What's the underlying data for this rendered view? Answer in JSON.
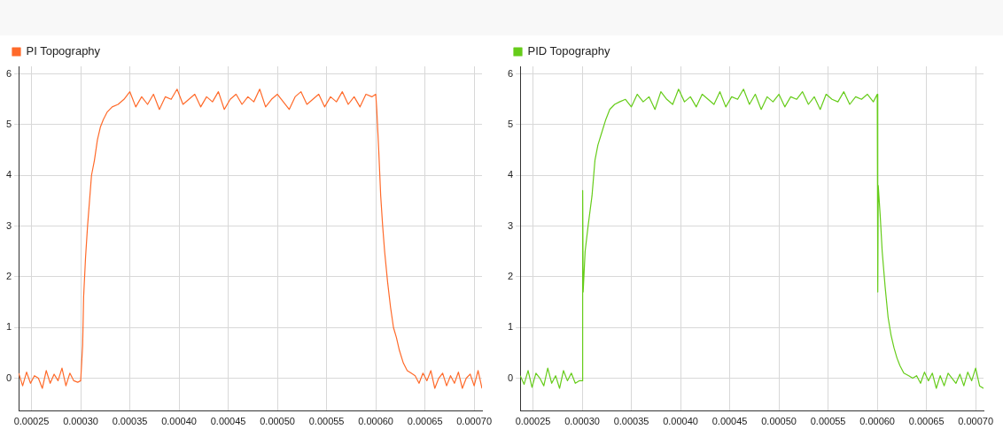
{
  "chart_data": [
    {
      "type": "line",
      "xlim": [
        0.000237,
        0.000708
      ],
      "xticks": [
        0.00025,
        {
          "value": 0.0003,
          "label": "0.00030"
        },
        0.00035,
        {
          "value": 0.0004,
          "label": "0.00040"
        },
        0.00045,
        {
          "value": 0.0005,
          "label": "0.00050"
        },
        0.00055,
        {
          "value": 0.0006,
          "label": "0.00060"
        },
        0.00065,
        {
          "value": 0.0007,
          "label": "0.00070"
        }
      ],
      "ylim": [
        -0.65,
        6.15
      ],
      "yticks": [
        0,
        1,
        2,
        3,
        4,
        5,
        6
      ],
      "grid": true,
      "legend": "top left",
      "marker": "none",
      "series": [
        {
          "name": "PI Topography",
          "color": "#ff6a2a",
          "x": [
            0.000237,
            0.000241,
            0.000245,
            0.000249,
            0.000253,
            0.000257,
            0.000261,
            0.000265,
            0.000269,
            0.000273,
            0.000277,
            0.000281,
            0.000285,
            0.000289,
            0.000293,
            0.000297,
            0.0003,
            0.000302,
            0.000303,
            0.000305,
            0.000307,
            0.000309,
            0.000311,
            0.000314,
            0.000317,
            0.00032,
            0.000323,
            0.000327,
            0.000332,
            0.000338,
            0.000344,
            0.00035,
            0.000356,
            0.000362,
            0.000368,
            0.000374,
            0.00038,
            0.000386,
            0.000392,
            0.000398,
            0.000404,
            0.00041,
            0.000416,
            0.000422,
            0.000428,
            0.000434,
            0.00044,
            0.000446,
            0.000452,
            0.000458,
            0.000464,
            0.00047,
            0.000476,
            0.000482,
            0.000488,
            0.000494,
            0.0005,
            0.000506,
            0.000512,
            0.000518,
            0.000524,
            0.00053,
            0.000536,
            0.000542,
            0.000548,
            0.000554,
            0.00056,
            0.000566,
            0.000572,
            0.000578,
            0.000584,
            0.00059,
            0.000596,
            0.0006,
            0.000601,
            0.000603,
            0.000605,
            0.000607,
            0.000609,
            0.000612,
            0.000615,
            0.000618,
            0.000621,
            0.000624,
            0.000628,
            0.000632,
            0.000636,
            0.00064,
            0.000644,
            0.000648,
            0.000652,
            0.000656,
            0.00066,
            0.000664,
            0.000668,
            0.000672,
            0.000676,
            0.00068,
            0.000684,
            0.000688,
            0.000692,
            0.000696,
            0.0007,
            0.000704,
            0.000708
          ],
          "values": [
            0.1,
            -0.15,
            0.12,
            -0.1,
            0.05,
            0.0,
            -0.2,
            0.15,
            -0.1,
            0.08,
            -0.05,
            0.2,
            -0.15,
            0.1,
            -0.05,
            -0.08,
            -0.05,
            0.65,
            1.6,
            2.4,
            3.0,
            3.5,
            4.0,
            4.3,
            4.7,
            4.95,
            5.1,
            5.25,
            5.35,
            5.4,
            5.5,
            5.65,
            5.35,
            5.55,
            5.4,
            5.6,
            5.3,
            5.55,
            5.5,
            5.7,
            5.4,
            5.5,
            5.6,
            5.35,
            5.55,
            5.45,
            5.65,
            5.3,
            5.5,
            5.6,
            5.4,
            5.55,
            5.45,
            5.7,
            5.35,
            5.5,
            5.6,
            5.45,
            5.3,
            5.55,
            5.65,
            5.4,
            5.5,
            5.6,
            5.35,
            5.55,
            5.45,
            5.65,
            5.4,
            5.55,
            5.35,
            5.6,
            5.55,
            5.6,
            5.3,
            4.5,
            3.6,
            3.0,
            2.5,
            1.9,
            1.4,
            1.0,
            0.8,
            0.55,
            0.3,
            0.15,
            0.1,
            0.05,
            -0.1,
            0.1,
            -0.05,
            0.15,
            -0.2,
            0.0,
            0.1,
            -0.15,
            0.05,
            -0.1,
            0.12,
            -0.2,
            0.0,
            0.08,
            -0.15,
            0.15,
            -0.2
          ]
        }
      ]
    },
    {
      "type": "line",
      "xlim": [
        0.000237,
        0.000708
      ],
      "xticks": [
        0.00025,
        {
          "value": 0.0003,
          "label": "0.00030"
        },
        0.00035,
        {
          "value": 0.0004,
          "label": "0.00040"
        },
        0.00045,
        {
          "value": 0.0005,
          "label": "0.00050"
        },
        0.00055,
        {
          "value": 0.0006,
          "label": "0.00060"
        },
        0.00065,
        {
          "value": 0.0007,
          "label": "0.00070"
        }
      ],
      "ylim": [
        -0.65,
        6.15
      ],
      "yticks": [
        0,
        1,
        2,
        3,
        4,
        5,
        6
      ],
      "grid": true,
      "legend": "top left",
      "marker": "none",
      "series": [
        {
          "name": "PID Topography",
          "color": "#66cc1a",
          "x": [
            0.000237,
            0.000241,
            0.000245,
            0.000249,
            0.000253,
            0.000257,
            0.000261,
            0.000265,
            0.000269,
            0.000273,
            0.000277,
            0.000281,
            0.000285,
            0.000289,
            0.000293,
            0.000297,
            0.0003,
            0.0003005,
            0.000301,
            0.000303,
            0.000306,
            0.00031,
            0.000313,
            0.000316,
            0.00032,
            0.000324,
            0.000328,
            0.000333,
            0.000338,
            0.000344,
            0.00035,
            0.000356,
            0.000362,
            0.000368,
            0.000374,
            0.00038,
            0.000386,
            0.000392,
            0.000398,
            0.000404,
            0.00041,
            0.000416,
            0.000422,
            0.000428,
            0.000434,
            0.00044,
            0.000446,
            0.000452,
            0.000458,
            0.000464,
            0.00047,
            0.000476,
            0.000482,
            0.000488,
            0.000494,
            0.0005,
            0.000506,
            0.000512,
            0.000518,
            0.000524,
            0.00053,
            0.000536,
            0.000542,
            0.000548,
            0.000554,
            0.00056,
            0.000566,
            0.000572,
            0.000578,
            0.000584,
            0.00059,
            0.000596,
            0.0006,
            0.0006005,
            0.000601,
            0.000603,
            0.000605,
            0.000608,
            0.000611,
            0.000614,
            0.000617,
            0.00062,
            0.000623,
            0.000627,
            0.000632,
            0.000636,
            0.00064,
            0.000644,
            0.000648,
            0.000652,
            0.000656,
            0.00066,
            0.000664,
            0.000668,
            0.000672,
            0.000676,
            0.00068,
            0.000684,
            0.000688,
            0.000692,
            0.000696,
            0.0007,
            0.000704,
            0.000708
          ],
          "values": [
            0.05,
            -0.12,
            0.15,
            -0.18,
            0.1,
            0.0,
            -0.15,
            0.2,
            -0.1,
            0.05,
            -0.2,
            0.15,
            -0.05,
            0.1,
            -0.1,
            -0.05,
            -0.05,
            3.7,
            1.7,
            2.5,
            3.0,
            3.6,
            4.3,
            4.6,
            4.85,
            5.1,
            5.3,
            5.4,
            5.45,
            5.5,
            5.35,
            5.6,
            5.45,
            5.55,
            5.3,
            5.65,
            5.5,
            5.4,
            5.7,
            5.45,
            5.55,
            5.35,
            5.6,
            5.5,
            5.4,
            5.65,
            5.35,
            5.55,
            5.5,
            5.7,
            5.4,
            5.6,
            5.3,
            5.55,
            5.45,
            5.6,
            5.35,
            5.55,
            5.5,
            5.65,
            5.4,
            5.55,
            5.3,
            5.6,
            5.5,
            5.45,
            5.65,
            5.4,
            5.55,
            5.5,
            5.6,
            5.45,
            5.6,
            1.7,
            3.8,
            3.2,
            2.5,
            1.8,
            1.2,
            0.85,
            0.6,
            0.4,
            0.25,
            0.1,
            0.05,
            0.0,
            0.05,
            -0.1,
            0.12,
            -0.05,
            0.1,
            -0.2,
            0.05,
            -0.15,
            0.1,
            0.0,
            -0.1,
            0.08,
            -0.15,
            0.12,
            -0.05,
            0.2,
            -0.15,
            -0.2
          ]
        }
      ]
    }
  ]
}
